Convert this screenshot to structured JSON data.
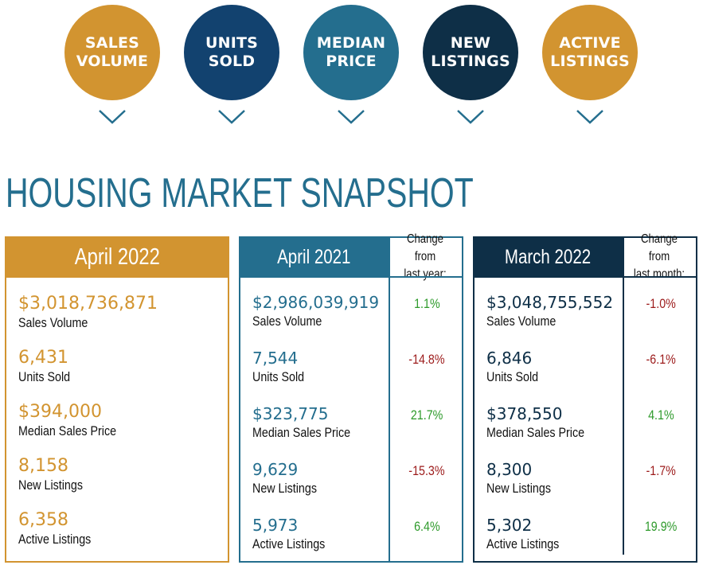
{
  "categories": [
    {
      "label": "SALES\nVOLUME",
      "color": "#d29430"
    },
    {
      "label": "UNITS\nSOLD",
      "color": "#12426f"
    },
    {
      "label": "MEDIAN\nPRICE",
      "color": "#246e8e"
    },
    {
      "label": "NEW\nLISTINGS",
      "color": "#0e2f47"
    },
    {
      "label": "ACTIVE\nLISTINGS",
      "color": "#d29430"
    }
  ],
  "title": "HOUSING MARKET SNAPSHOT",
  "current": {
    "period": "April 2022",
    "stats": [
      {
        "value": "$3,018,736,871",
        "label": "Sales Volume"
      },
      {
        "value": "6,431",
        "label": "Units Sold"
      },
      {
        "value": "$394,000",
        "label": "Median Sales Price"
      },
      {
        "value": "8,158",
        "label": "New Listings"
      },
      {
        "value": "6,358",
        "label": "Active Listings"
      }
    ]
  },
  "prior_year": {
    "period": "April 2021",
    "change_header": "Change from\nlast year:",
    "stats": [
      {
        "value": "$2,986,039,919",
        "label": "Sales Volume",
        "change": "1.1%",
        "direction": "pos"
      },
      {
        "value": "7,544",
        "label": "Units Sold",
        "change": "-14.8%",
        "direction": "neg"
      },
      {
        "value": "$323,775",
        "label": "Median Sales Price",
        "change": "21.7%",
        "direction": "pos"
      },
      {
        "value": "9,629",
        "label": "New Listings",
        "change": "-15.3%",
        "direction": "neg"
      },
      {
        "value": "5,973",
        "label": "Active Listings",
        "change": "6.4%",
        "direction": "pos"
      }
    ]
  },
  "prior_month": {
    "period": "March 2022",
    "change_header": "Change from\nlast month:",
    "stats": [
      {
        "value": "$3,048,755,552",
        "label": "Sales Volume",
        "change": "-1.0%",
        "direction": "neg"
      },
      {
        "value": "6,846",
        "label": "Units Sold",
        "change": "-6.1%",
        "direction": "neg"
      },
      {
        "value": "$378,550",
        "label": "Median Sales Price",
        "change": "4.1%",
        "direction": "pos"
      },
      {
        "value": "8,300",
        "label": "New Listings",
        "change": "-1.7%",
        "direction": "neg"
      },
      {
        "value": "5,302",
        "label": "Active Listings",
        "change": "19.9%",
        "direction": "pos"
      }
    ]
  },
  "colors": {
    "gold": "#d29430",
    "navy": "#12426f",
    "teal": "#246e8e",
    "dark_navy": "#0e2f47",
    "negative": "#9c1a1a",
    "positive": "#2d9a2a"
  },
  "icons": {
    "chevron": "chevron-down-icon"
  }
}
